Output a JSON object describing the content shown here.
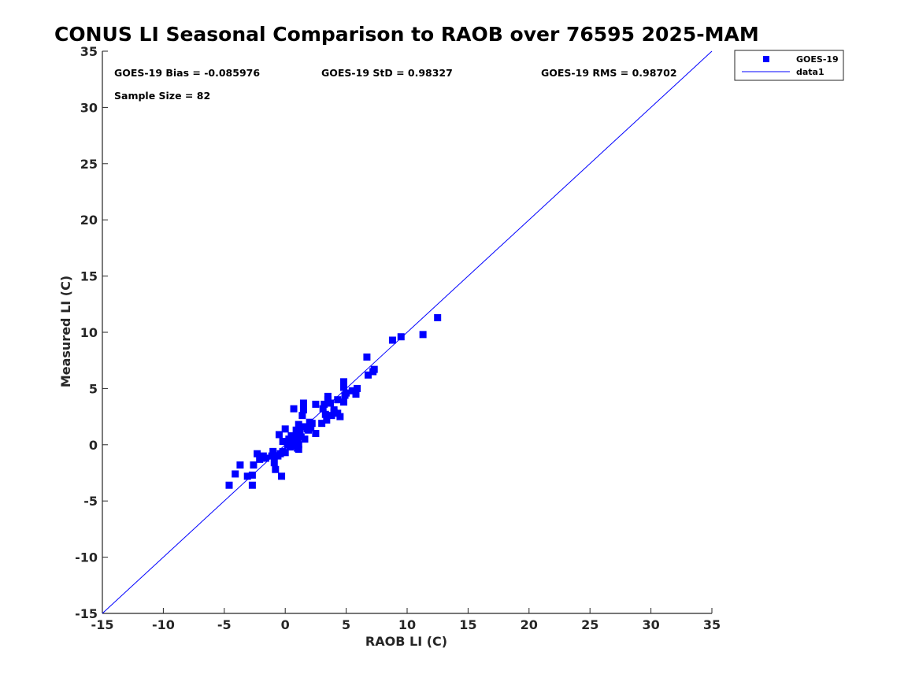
{
  "chart_data": {
    "type": "scatter",
    "title": "CONUS LI Seasonal Comparison to RAOB over 76595 2025-MAM",
    "xlabel": "RAOB LI (C)",
    "ylabel": "Measured LI (C)",
    "xlim": [
      -15,
      35
    ],
    "ylim": [
      -15,
      35
    ],
    "xticks": [
      "-15",
      "-10",
      "-5",
      "0",
      "5",
      "10",
      "15",
      "20",
      "25",
      "30",
      "35"
    ],
    "yticks": [
      "35",
      "30",
      "25",
      "20",
      "15",
      "10",
      "5",
      "0",
      "-5",
      "-10",
      "-15"
    ],
    "stats": {
      "bias": "GOES-19 Bias = -0.085976",
      "std": "GOES-19 StD = 0.98327",
      "rms": "GOES-19 RMS = 0.98702",
      "sample": "Sample Size = 82"
    },
    "legend": {
      "position": "top-right outside",
      "entries": [
        "GOES-19",
        "data1"
      ]
    },
    "colors": {
      "series": "#0000ff",
      "line": "#0000ff",
      "axis": "#262626"
    },
    "series": [
      {
        "name": "GOES-19",
        "marker": "square",
        "points": [
          [
            -4.6,
            -3.6
          ],
          [
            -4.1,
            -2.6
          ],
          [
            -3.7,
            -1.8
          ],
          [
            -3.1,
            -2.8
          ],
          [
            -2.7,
            -2.7
          ],
          [
            -2.7,
            -3.6
          ],
          [
            -2.6,
            -1.8
          ],
          [
            -2.3,
            -0.8
          ],
          [
            -2.1,
            -1.3
          ],
          [
            -1.8,
            -1.0
          ],
          [
            -1.6,
            -1.2
          ],
          [
            -1.1,
            -1.0
          ],
          [
            -1.0,
            -0.6
          ],
          [
            -0.9,
            -1.6
          ],
          [
            -0.8,
            -2.2
          ],
          [
            -0.6,
            -1.0
          ],
          [
            -0.5,
            0.9
          ],
          [
            -0.4,
            -0.8
          ],
          [
            -0.3,
            -2.8
          ],
          [
            -0.2,
            0.3
          ],
          [
            -0.2,
            -0.6
          ],
          [
            0.0,
            1.4
          ],
          [
            0.0,
            -0.7
          ],
          [
            0.1,
            0.3
          ],
          [
            0.2,
            0.0
          ],
          [
            0.3,
            0.5
          ],
          [
            0.4,
            -0.2
          ],
          [
            0.5,
            0.8
          ],
          [
            0.6,
            0.2
          ],
          [
            0.7,
            3.2
          ],
          [
            0.8,
            -0.1
          ],
          [
            0.9,
            1.3
          ],
          [
            1.0,
            0.9
          ],
          [
            1.0,
            0.3
          ],
          [
            1.1,
            0.0
          ],
          [
            1.1,
            -0.4
          ],
          [
            1.1,
            1.8
          ],
          [
            1.2,
            1.2
          ],
          [
            1.3,
            0.7
          ],
          [
            1.4,
            2.6
          ],
          [
            1.5,
            3.1
          ],
          [
            1.5,
            3.7
          ],
          [
            1.6,
            1.6
          ],
          [
            1.6,
            0.5
          ],
          [
            1.8,
            1.4
          ],
          [
            1.9,
            1.3
          ],
          [
            2.1,
            1.5
          ],
          [
            2.2,
            1.9
          ],
          [
            2.5,
            1.0
          ],
          [
            2.5,
            3.6
          ],
          [
            3.0,
            1.9
          ],
          [
            3.1,
            3.2
          ],
          [
            3.2,
            3.6
          ],
          [
            3.3,
            2.7
          ],
          [
            3.4,
            2.2
          ],
          [
            3.5,
            4.0
          ],
          [
            3.5,
            4.3
          ],
          [
            3.7,
            3.7
          ],
          [
            3.8,
            2.6
          ],
          [
            4.0,
            2.9
          ],
          [
            4.0,
            3.1
          ],
          [
            4.3,
            4.0
          ],
          [
            4.3,
            2.8
          ],
          [
            4.5,
            2.5
          ],
          [
            4.8,
            5.1
          ],
          [
            4.8,
            5.6
          ],
          [
            4.8,
            3.8
          ],
          [
            4.9,
            4.4
          ],
          [
            5.0,
            4.6
          ],
          [
            5.5,
            4.8
          ],
          [
            5.8,
            4.5
          ],
          [
            5.9,
            5.0
          ],
          [
            6.7,
            7.8
          ],
          [
            6.8,
            6.2
          ],
          [
            7.2,
            6.5
          ],
          [
            7.3,
            6.7
          ],
          [
            8.8,
            9.3
          ],
          [
            9.5,
            9.6
          ],
          [
            11.3,
            9.8
          ],
          [
            12.5,
            11.3
          ],
          [
            1.0,
            -0.3
          ],
          [
            2.0,
            2.0
          ]
        ]
      },
      {
        "name": "data1",
        "type": "line",
        "points": [
          [
            -15,
            -15
          ],
          [
            35,
            35
          ]
        ]
      }
    ]
  }
}
